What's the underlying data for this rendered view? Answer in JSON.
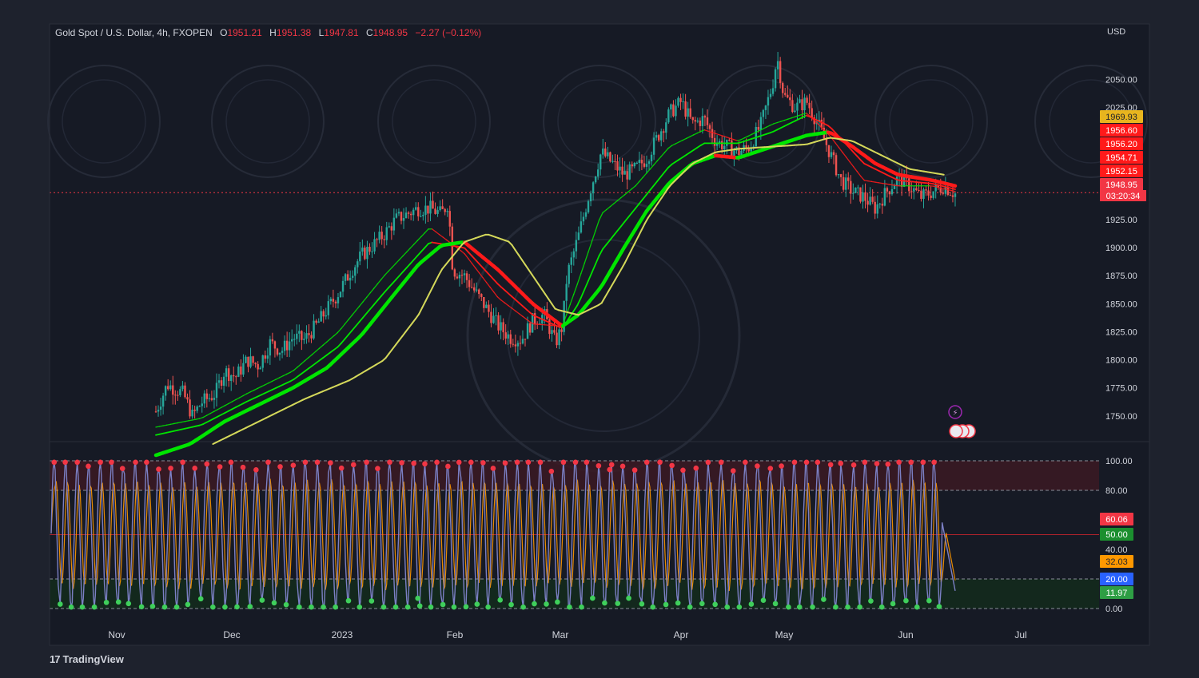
{
  "header": {
    "symbol": "Gold Spot / U.S. Dollar, 4h, FXOPEN",
    "open_label": "O",
    "open": "1951.21",
    "high_label": "H",
    "high": "1951.38",
    "low_label": "L",
    "low": "1947.81",
    "close_label": "C",
    "close": "1948.95",
    "change": "−2.27 (−0.12%)"
  },
  "currency": "USD",
  "brand": {
    "logo": "17",
    "name": "TradingView"
  },
  "colors": {
    "background": "#1e222d",
    "panel": "#161a25",
    "up": "#26a69a",
    "down": "#ef5350",
    "ema_bull": "#00e600",
    "ema_bear": "#ff1a1a",
    "slow_line": "#d4d85a",
    "osc_line": "#7b7fc4",
    "osc_signal": "#ff9800"
  },
  "chart_data": [
    {
      "type": "candlestick",
      "title": "Gold Spot / U.S. Dollar, 4h, FXOPEN",
      "ylim": [
        1725,
        2100
      ],
      "y_ticks": [
        2050,
        2025,
        1925,
        1900,
        1875,
        1850,
        1825,
        1800,
        1775,
        1750
      ],
      "y_tick_labels": [
        "2050.00",
        "2025.00",
        "1925.00",
        "1900.00",
        "1875.00",
        "1850.00",
        "1825.00",
        "1800.00",
        "1775.00",
        "1750.00"
      ],
      "x_axis_labels": [
        "Nov",
        "Dec",
        "2023",
        "Feb",
        "Mar",
        "Apr",
        "May",
        "Jun",
        "Jul"
      ],
      "price_path": [
        [
          0.0,
          1754
        ],
        [
          0.5,
          1778
        ],
        [
          1.2,
          1770
        ],
        [
          1.6,
          1750
        ],
        [
          2.0,
          1762
        ],
        [
          2.6,
          1770
        ],
        [
          3.0,
          1790
        ],
        [
          3.5,
          1785
        ],
        [
          4.0,
          1800
        ],
        [
          4.5,
          1795
        ],
        [
          5.0,
          1815
        ],
        [
          5.5,
          1808
        ],
        [
          6.0,
          1820
        ],
        [
          6.5,
          1818
        ],
        [
          7.0,
          1830
        ],
        [
          7.5,
          1845
        ],
        [
          8.0,
          1860
        ],
        [
          8.5,
          1878
        ],
        [
          9.0,
          1893
        ],
        [
          9.5,
          1902
        ],
        [
          10.0,
          1912
        ],
        [
          10.5,
          1925
        ],
        [
          11.0,
          1930
        ],
        [
          11.5,
          1935
        ],
        [
          12.0,
          1935
        ],
        [
          12.5,
          1930
        ],
        [
          12.8,
          1940
        ],
        [
          13.0,
          1880
        ],
        [
          13.5,
          1875
        ],
        [
          14.0,
          1860
        ],
        [
          14.5,
          1845
        ],
        [
          15.0,
          1830
        ],
        [
          15.5,
          1820
        ],
        [
          16.0,
          1818
        ],
        [
          16.5,
          1835
        ],
        [
          17.0,
          1840
        ],
        [
          17.5,
          1815
        ],
        [
          17.8,
          1830
        ],
        [
          18.0,
          1875
        ],
        [
          18.5,
          1910
        ],
        [
          19.0,
          1950
        ],
        [
          19.5,
          1985
        ],
        [
          20.0,
          1975
        ],
        [
          20.5,
          1965
        ],
        [
          21.0,
          1970
        ],
        [
          21.5,
          1980
        ],
        [
          22.0,
          2000
        ],
        [
          22.5,
          2020
        ],
        [
          23.0,
          2030
        ],
        [
          23.5,
          2010
        ],
        [
          24.0,
          2015
        ],
        [
          24.5,
          1995
        ],
        [
          25.0,
          1990
        ],
        [
          25.5,
          1985
        ],
        [
          26.0,
          1990
        ],
        [
          26.5,
          2010
        ],
        [
          27.0,
          2045
        ],
        [
          27.2,
          2070
        ],
        [
          27.5,
          2035
        ],
        [
          28.0,
          2025
        ],
        [
          28.5,
          2030
        ],
        [
          29.0,
          2010
        ],
        [
          29.5,
          1985
        ],
        [
          30.0,
          1960
        ],
        [
          30.5,
          1950
        ],
        [
          31.0,
          1945
        ],
        [
          31.5,
          1935
        ],
        [
          32.0,
          1950
        ],
        [
          32.5,
          1962
        ],
        [
          33.0,
          1955
        ],
        [
          33.5,
          1945
        ],
        [
          34.0,
          1950
        ],
        [
          34.5,
          1955
        ],
        [
          35.0,
          1948
        ]
      ],
      "moving_averages": [
        {
          "role": "fast",
          "path": [
            [
              0.0,
              1740
            ],
            [
              2.0,
              1748
            ],
            [
              4.0,
              1770
            ],
            [
              6.0,
              1790
            ],
            [
              8.0,
              1825
            ],
            [
              10.0,
              1875
            ],
            [
              12.0,
              1918
            ],
            [
              13.5,
              1895
            ],
            [
              15.0,
              1855
            ],
            [
              16.5,
              1832
            ],
            [
              17.8,
              1830
            ],
            [
              18.5,
              1870
            ],
            [
              19.5,
              1930
            ],
            [
              21.0,
              1955
            ],
            [
              22.5,
              1990
            ],
            [
              24.0,
              2005
            ],
            [
              25.5,
              1995
            ],
            [
              27.0,
              2010
            ],
            [
              28.5,
              2020
            ],
            [
              29.5,
              2000
            ],
            [
              31.0,
              1960
            ],
            [
              32.5,
              1955
            ],
            [
              34.0,
              1955
            ],
            [
              35.0,
              1950
            ]
          ]
        },
        {
          "role": "medium",
          "path": [
            [
              0.0,
              1733
            ],
            [
              2.0,
              1742
            ],
            [
              4.0,
              1763
            ],
            [
              6.0,
              1782
            ],
            [
              8.0,
              1812
            ],
            [
              10.0,
              1860
            ],
            [
              12.0,
              1905
            ],
            [
              13.5,
              1900
            ],
            [
              15.0,
              1867
            ],
            [
              16.5,
              1840
            ],
            [
              17.8,
              1828
            ],
            [
              18.5,
              1850
            ],
            [
              19.5,
              1897
            ],
            [
              21.0,
              1935
            ],
            [
              22.5,
              1973
            ],
            [
              24.0,
              1993
            ],
            [
              25.5,
              1993
            ],
            [
              27.0,
              2003
            ],
            [
              28.5,
              2018
            ],
            [
              29.5,
              2008
            ],
            [
              31.0,
              1975
            ],
            [
              32.5,
              1960
            ],
            [
              34.0,
              1957
            ],
            [
              35.0,
              1952
            ]
          ]
        },
        {
          "role": "thick",
          "path": [
            [
              0.0,
              1715
            ],
            [
              1.5,
              1725
            ],
            [
              3.0,
              1745
            ],
            [
              4.5,
              1760
            ],
            [
              6.0,
              1775
            ],
            [
              7.5,
              1793
            ],
            [
              9.0,
              1822
            ],
            [
              10.5,
              1860
            ],
            [
              11.5,
              1885
            ],
            [
              12.5,
              1902
            ],
            [
              13.5,
              1905
            ],
            [
              15.0,
              1880
            ],
            [
              16.5,
              1850
            ],
            [
              17.8,
              1830
            ],
            [
              18.5,
              1840
            ],
            [
              19.5,
              1865
            ],
            [
              20.5,
              1900
            ],
            [
              21.5,
              1933
            ],
            [
              22.5,
              1958
            ],
            [
              23.5,
              1975
            ],
            [
              24.5,
              1982
            ],
            [
              25.5,
              1980
            ],
            [
              27.0,
              1990
            ],
            [
              28.5,
              2000
            ],
            [
              29.5,
              2003
            ],
            [
              30.5,
              1990
            ],
            [
              31.5,
              1975
            ],
            [
              32.5,
              1965
            ],
            [
              34.0,
              1960
            ],
            [
              35.0,
              1955
            ]
          ]
        },
        {
          "role": "slow",
          "path": [
            [
              2.5,
              1725
            ],
            [
              4.5,
              1745
            ],
            [
              6.5,
              1765
            ],
            [
              8.5,
              1782
            ],
            [
              10.0,
              1800
            ],
            [
              11.5,
              1840
            ],
            [
              12.5,
              1880
            ],
            [
              13.5,
              1905
            ],
            [
              14.5,
              1912
            ],
            [
              15.5,
              1905
            ],
            [
              16.5,
              1875
            ],
            [
              17.5,
              1845
            ],
            [
              18.5,
              1840
            ],
            [
              19.5,
              1850
            ],
            [
              20.5,
              1885
            ],
            [
              21.5,
              1925
            ],
            [
              22.5,
              1955
            ],
            [
              23.5,
              1975
            ],
            [
              24.5,
              1985
            ],
            [
              25.5,
              1988
            ],
            [
              27.0,
              1990
            ],
            [
              28.5,
              1992
            ],
            [
              29.5,
              1998
            ],
            [
              30.5,
              1995
            ],
            [
              31.5,
              1985
            ],
            [
              33.0,
              1970
            ],
            [
              34.5,
              1965
            ]
          ]
        }
      ],
      "current_price_line": 1948.95,
      "price_markers": [
        {
          "value": "1969.93",
          "color": "#e8b51e"
        },
        {
          "value": "1956.60",
          "color": "#ff1a1a"
        },
        {
          "value": "1956.20",
          "color": "#ff1a1a"
        },
        {
          "value": "1954.71",
          "color": "#ff1a1a"
        },
        {
          "value": "1952.15",
          "color": "#ff1a1a"
        },
        {
          "value": "1948.95",
          "color": "#f23645"
        }
      ],
      "countdown": "03:20:34"
    },
    {
      "type": "line",
      "title": "",
      "ylim": [
        0,
        100
      ],
      "y_ticks": [
        100,
        80,
        40,
        0
      ],
      "y_tick_labels": [
        "100.00",
        "80.00",
        "40.00",
        "0.00"
      ],
      "bands": {
        "overbought": [
          80,
          100
        ],
        "oversold": [
          0,
          20
        ]
      },
      "levels": [
        100,
        80,
        50,
        20,
        0
      ],
      "value_markers": [
        {
          "value": "60.06",
          "color": "#f23645"
        },
        {
          "value": "50.00",
          "color": "#1b8f2f"
        },
        {
          "value": "32.03",
          "color": "#ff9800"
        },
        {
          "value": "20.00",
          "color": "#2962ff"
        },
        {
          "value": "11.97",
          "color": "#2e9e44"
        }
      ],
      "cycle_count": 76,
      "last_value": 11.97
    }
  ]
}
